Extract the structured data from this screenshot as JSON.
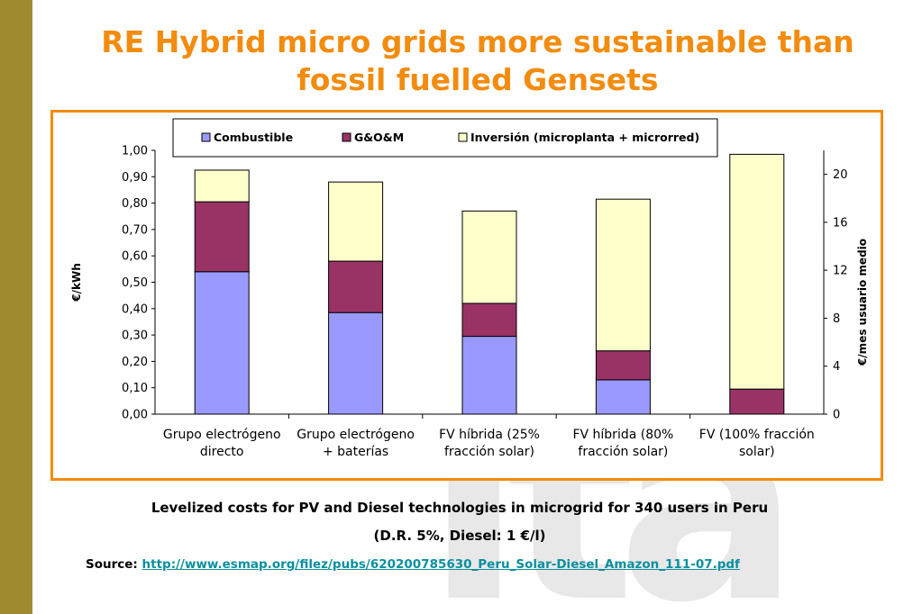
{
  "slide": {
    "title": "RE Hybrid micro grids more sustainable than fossil fuelled Gensets",
    "caption_line1": "Levelized costs for PV and Diesel technologies in  microgrid for 340 users in Peru",
    "caption_line2": "(D.R.  5%,  Diesel: 1 €/l)",
    "source_label": "Source:",
    "source_url": "http://www.esmap.org/filez/pubs/620200785630_Peru_Solar-Diesel_Amazon_111-07.pdf",
    "watermark": "Ita",
    "colors": {
      "title": "#f28c0f",
      "frame": "#f28c0f",
      "sidebar": "#a08a2f",
      "link": "#0a8f9e"
    }
  },
  "chart_data": {
    "type": "bar",
    "stacked": true,
    "categories": [
      [
        "Grupo electrógeno",
        "directo"
      ],
      [
        "Grupo electrógeno",
        "+ baterías"
      ],
      [
        "FV híbrida (25%",
        "fracción solar)"
      ],
      [
        "FV híbrida (80%",
        "fracción solar)"
      ],
      [
        "FV (100% fracción",
        "solar)"
      ]
    ],
    "series": [
      {
        "name": "Combustible",
        "color": "#9999ff",
        "values": [
          0.54,
          0.385,
          0.295,
          0.13,
          0.0
        ]
      },
      {
        "name": "G&O&M",
        "color": "#993366",
        "values": [
          0.265,
          0.195,
          0.125,
          0.11,
          0.095
        ]
      },
      {
        "name": "Inversión (microplanta + microrred)",
        "color": "#ffffcc",
        "values": [
          0.12,
          0.3,
          0.35,
          0.575,
          0.89
        ]
      }
    ],
    "ylabel": "€/kWh",
    "ylim": [
      0,
      1.0
    ],
    "yticks": [
      "0,00",
      "0,10",
      "0,20",
      "0,30",
      "0,40",
      "0,50",
      "0,60",
      "0,70",
      "0,80",
      "0,90",
      "1,00"
    ],
    "y2label": "€/mes usuario medio",
    "y2lim": [
      0,
      22
    ],
    "y2ticks": [
      "0",
      "4",
      "8",
      "12",
      "16",
      "20"
    ],
    "grid": false,
    "legend_position": "top"
  }
}
